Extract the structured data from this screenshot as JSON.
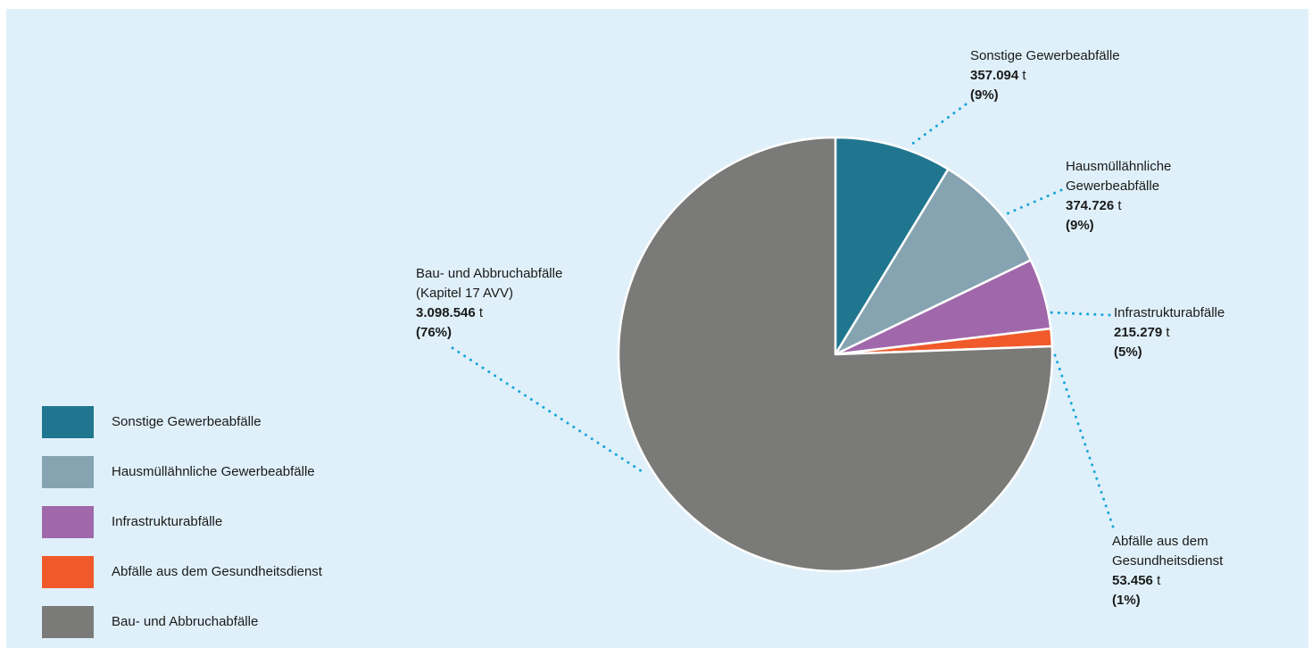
{
  "chart_data": {
    "type": "pie",
    "unit": "t",
    "slices": [
      {
        "key": "sonstige",
        "name": "Sonstige Gewerbeabfälle",
        "legend": "Sonstige Gewerbeabfälle",
        "label_lines": [
          "Sonstige Gewerbeabfälle"
        ],
        "value": 357094,
        "value_text": "357.094",
        "percent_text": "(9%)",
        "color": "#21768f"
      },
      {
        "key": "hausmuell",
        "name": "Hausmüllähnliche Gewerbeabfälle",
        "legend": "Hausmüllähnliche Gewerbeabfälle",
        "label_lines": [
          "Hausmüllähnliche",
          "Gewerbeabfälle"
        ],
        "value": 374726,
        "value_text": "374.726",
        "percent_text": "(9%)",
        "color": "#85a3b1"
      },
      {
        "key": "infra",
        "name": "Infrastrukturabfälle",
        "legend": "Infrastrukturabfälle",
        "label_lines": [
          "Infrastrukturabfälle"
        ],
        "value": 215279,
        "value_text": "215.279",
        "percent_text": "(5%)",
        "color": "#a068aa"
      },
      {
        "key": "gesundheit",
        "name": "Abfälle aus dem Gesundheitsdienst",
        "legend": "Abfälle aus dem Gesundheitsdienst",
        "label_lines": [
          "Abfälle aus dem",
          "Gesundheitsdienst"
        ],
        "value": 53456,
        "value_text": "53.456",
        "percent_text": "(1%)",
        "color": "#f05a2a"
      },
      {
        "key": "bau",
        "name": "Bau- und Abbruchabfälle (Kapitel 17 AVV)",
        "legend": "Bau- und Abbruchabfälle",
        "label_lines": [
          "Bau- und Abbruchabfälle",
          "(Kapitel 17 AVV)"
        ],
        "value": 3098546,
        "value_text": "3.098.546",
        "percent_text": "(76%)",
        "color": "#7a7b78"
      }
    ],
    "leader_color": "#1aa6d8",
    "background_color": "#dff0fa"
  }
}
